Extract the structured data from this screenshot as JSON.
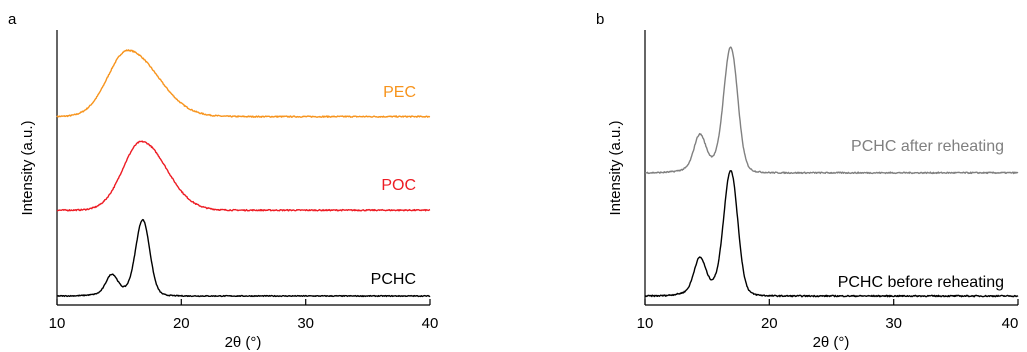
{
  "colors": {
    "pec": "#f7941d",
    "poc": "#ed1c24",
    "pchc": "#000000",
    "after_reheating": "#808080",
    "before_reheating": "#000000"
  },
  "chart_data": [
    {
      "type": "line",
      "panel_label": "a",
      "xlabel": "2θ (°)",
      "ylabel": "Intensity (a.u.)",
      "xlim": [
        10,
        40
      ],
      "xticks": [
        "10",
        "20",
        "30",
        "40"
      ],
      "yticks": false,
      "grid": false,
      "legend": "inline labels right of each trace",
      "series": [
        {
          "name": "PEC",
          "color_key": "pec",
          "baseline": 2.3,
          "noise": 0.008,
          "peaks": [
            {
              "center": 15.7,
              "width": 1.6,
              "height": 0.85,
              "right_tail": 2.4
            }
          ]
        },
        {
          "name": "POC",
          "color_key": "poc",
          "baseline": 1.1,
          "noise": 0.008,
          "peaks": [
            {
              "center": 16.8,
              "width": 1.5,
              "height": 0.88,
              "right_tail": 2.0
            }
          ]
        },
        {
          "name": "PCHC",
          "color_key": "pchc",
          "baseline": 0.0,
          "noise": 0.006,
          "peaks": [
            {
              "center": 14.4,
              "width": 0.45,
              "height": 0.22
            },
            {
              "center": 16.9,
              "width": 0.55,
              "height": 0.92
            },
            {
              "center": 15.6,
              "width": 1.6,
              "height": 0.08
            }
          ]
        }
      ]
    },
    {
      "type": "line",
      "panel_label": "b",
      "xlabel": "2θ (°)",
      "ylabel": "Intensity (a.u.)",
      "xlim": [
        10,
        40
      ],
      "xticks": [
        "10",
        "20",
        "30",
        "40"
      ],
      "yticks": false,
      "grid": false,
      "legend": "inline labels above each trace",
      "series": [
        {
          "name": "PCHC after reheating",
          "color_key": "after_reheating",
          "baseline": 1.1,
          "noise": 0.006,
          "peaks": [
            {
              "center": 14.4,
              "width": 0.45,
              "height": 0.27
            },
            {
              "center": 16.9,
              "width": 0.55,
              "height": 1.05
            },
            {
              "center": 15.6,
              "width": 1.6,
              "height": 0.1
            }
          ]
        },
        {
          "name": "PCHC before reheating",
          "color_key": "before_reheating",
          "baseline": 0.0,
          "noise": 0.006,
          "peaks": [
            {
              "center": 14.4,
              "width": 0.45,
              "height": 0.27
            },
            {
              "center": 16.9,
              "width": 0.55,
              "height": 1.05
            },
            {
              "center": 15.6,
              "width": 1.6,
              "height": 0.1
            }
          ]
        }
      ]
    }
  ]
}
